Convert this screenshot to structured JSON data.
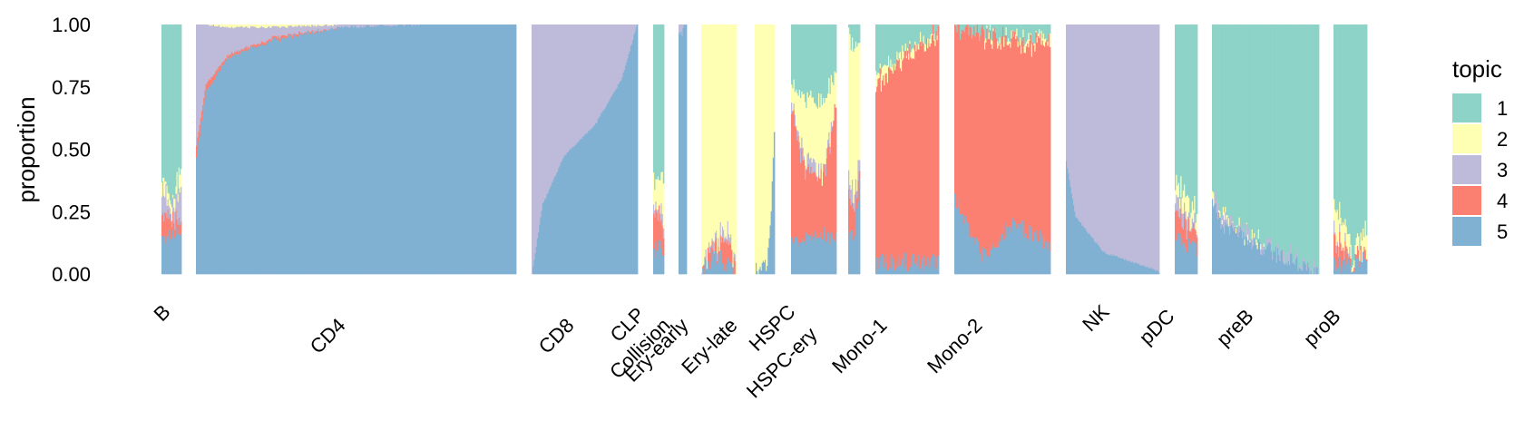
{
  "chart_data": {
    "type": "stacked-bar-structure-plot",
    "ylabel": "proportion",
    "ylim": [
      0,
      1
    ],
    "yticks": [
      "0.00",
      "0.25",
      "0.50",
      "0.75",
      "1.00"
    ],
    "legend_title": "topic",
    "legend_position": "right",
    "topics": [
      {
        "name": "1",
        "color": "#8DD3C7"
      },
      {
        "name": "2",
        "color": "#FFFFB3"
      },
      {
        "name": "3",
        "color": "#BEBADA"
      },
      {
        "name": "4",
        "color": "#FB8072"
      },
      {
        "name": "5",
        "color": "#80B1D3"
      }
    ],
    "groups": [
      {
        "name": "B",
        "n_cells": 20,
        "profiles": [
          [
            0.0,
            [
              0.6,
              0.05,
              0.1,
              0.1,
              0.15
            ]
          ],
          [
            0.5,
            [
              0.7,
              0.04,
              0.05,
              0.06,
              0.15
            ]
          ],
          [
            1.0,
            [
              0.58,
              0.08,
              0.12,
              0.04,
              0.18
            ]
          ]
        ]
      },
      {
        "name": "CD4",
        "n_cells": 300,
        "profiles": [
          [
            0.0,
            [
              0.0,
              0.0,
              0.48,
              0.05,
              0.47
            ]
          ],
          [
            0.03,
            [
              0.0,
              0.0,
              0.24,
              0.03,
              0.73
            ]
          ],
          [
            0.1,
            [
              0.0,
              0.01,
              0.11,
              0.01,
              0.87
            ]
          ],
          [
            0.25,
            [
              0.0,
              0.01,
              0.04,
              0.01,
              0.94
            ]
          ],
          [
            0.45,
            [
              0.0,
              0.0,
              0.01,
              0.0,
              0.99
            ]
          ],
          [
            0.7,
            [
              0.0,
              0.0,
              0.0,
              0.0,
              1.0
            ]
          ],
          [
            1.0,
            [
              0.0,
              0.0,
              0.0,
              0.0,
              1.0
            ]
          ]
        ]
      },
      {
        "name": "CD8",
        "n_cells": 100,
        "profiles": [
          [
            0.0,
            [
              0.0,
              0.0,
              1.0,
              0.0,
              0.0
            ]
          ],
          [
            0.1,
            [
              0.0,
              0.0,
              0.72,
              0.0,
              0.28
            ]
          ],
          [
            0.3,
            [
              0.0,
              0.0,
              0.53,
              0.0,
              0.47
            ]
          ],
          [
            0.6,
            [
              0.0,
              0.0,
              0.4,
              0.0,
              0.6
            ]
          ],
          [
            0.85,
            [
              0.0,
              0.0,
              0.22,
              0.0,
              0.78
            ]
          ],
          [
            1.0,
            [
              0.0,
              0.0,
              0.0,
              0.0,
              1.0
            ]
          ]
        ]
      },
      {
        "name": "CLP",
        "n_cells": 10,
        "profiles": [
          [
            0.0,
            [
              0.62,
              0.1,
              0.03,
              0.15,
              0.1
            ]
          ],
          [
            1.0,
            [
              0.6,
              0.17,
              0.03,
              0.1,
              0.1
            ]
          ]
        ]
      },
      {
        "name": "Collision",
        "n_cells": 8,
        "profiles": [
          [
            0.0,
            [
              0.0,
              0.0,
              0.05,
              0.0,
              0.95
            ]
          ],
          [
            1.0,
            [
              0.0,
              0.0,
              0.0,
              0.0,
              1.0
            ]
          ]
        ]
      },
      {
        "name": "Ery-early",
        "n_cells": 34,
        "profiles": [
          [
            0.0,
            [
              0.0,
              0.97,
              0.0,
              0.01,
              0.02
            ]
          ],
          [
            0.5,
            [
              0.0,
              0.85,
              0.02,
              0.05,
              0.08
            ]
          ],
          [
            0.75,
            [
              0.0,
              0.82,
              0.05,
              0.1,
              0.03
            ]
          ],
          [
            1.0,
            [
              0.0,
              0.98,
              0.0,
              0.01,
              0.01
            ]
          ]
        ]
      },
      {
        "name": "Ery-late",
        "n_cells": 20,
        "profiles": [
          [
            0.0,
            [
              0.0,
              0.99,
              0.0,
              0.0,
              0.01
            ]
          ],
          [
            0.6,
            [
              0.0,
              0.95,
              0.0,
              0.0,
              0.05
            ]
          ],
          [
            0.8,
            [
              0.0,
              0.82,
              0.0,
              0.0,
              0.18
            ]
          ],
          [
            1.0,
            [
              0.0,
              0.43,
              0.0,
              0.0,
              0.57
            ]
          ]
        ]
      },
      {
        "name": "HSPC",
        "n_cells": 40,
        "profiles": [
          [
            0.0,
            [
              0.25,
              0.05,
              0.02,
              0.55,
              0.13
            ]
          ],
          [
            0.3,
            [
              0.3,
              0.25,
              0.03,
              0.27,
              0.15
            ]
          ],
          [
            0.7,
            [
              0.32,
              0.28,
              0.02,
              0.23,
              0.15
            ]
          ],
          [
            1.0,
            [
              0.2,
              0.12,
              0.0,
              0.53,
              0.15
            ]
          ]
        ]
      },
      {
        "name": "HSPC-ery",
        "n_cells": 10,
        "profiles": [
          [
            0.0,
            [
              0.05,
              0.55,
              0.1,
              0.15,
              0.15
            ]
          ],
          [
            0.5,
            [
              0.1,
              0.6,
              0.05,
              0.1,
              0.15
            ]
          ],
          [
            1.0,
            [
              0.05,
              0.5,
              0.05,
              0.05,
              0.35
            ]
          ]
        ]
      },
      {
        "name": "Mono-1",
        "n_cells": 60,
        "profiles": [
          [
            0.0,
            [
              0.2,
              0.05,
              0.0,
              0.7,
              0.05
            ]
          ],
          [
            0.5,
            [
              0.1,
              0.02,
              0.0,
              0.83,
              0.05
            ]
          ],
          [
            1.0,
            [
              0.02,
              0.0,
              0.0,
              0.93,
              0.05
            ]
          ]
        ]
      },
      {
        "name": "Mono-2",
        "n_cells": 90,
        "profiles": [
          [
            0.0,
            [
              0.02,
              0.0,
              0.0,
              0.68,
              0.3
            ]
          ],
          [
            0.3,
            [
              0.03,
              0.0,
              0.0,
              0.9,
              0.07
            ]
          ],
          [
            0.6,
            [
              0.05,
              0.02,
              0.0,
              0.73,
              0.2
            ]
          ],
          [
            1.0,
            [
              0.05,
              0.02,
              0.0,
              0.8,
              0.13
            ]
          ]
        ]
      },
      {
        "name": "NK",
        "n_cells": 90,
        "profiles": [
          [
            0.0,
            [
              0.0,
              0.0,
              0.55,
              0.0,
              0.45
            ]
          ],
          [
            0.1,
            [
              0.0,
              0.0,
              0.77,
              0.0,
              0.23
            ]
          ],
          [
            0.4,
            [
              0.0,
              0.0,
              0.91,
              0.0,
              0.09
            ]
          ],
          [
            1.0,
            [
              0.0,
              0.0,
              0.99,
              0.0,
              0.01
            ]
          ]
        ]
      },
      {
        "name": "pDC",
        "n_cells": 20,
        "profiles": [
          [
            0.0,
            [
              0.62,
              0.08,
              0.05,
              0.1,
              0.15
            ]
          ],
          [
            1.0,
            [
              0.75,
              0.05,
              0.03,
              0.07,
              0.1
            ]
          ]
        ]
      },
      {
        "name": "preB",
        "n_cells": 100,
        "profiles": [
          [
            0.0,
            [
              0.65,
              0.02,
              0.03,
              0.0,
              0.3
            ]
          ],
          [
            0.1,
            [
              0.78,
              0.01,
              0.02,
              0.0,
              0.19
            ]
          ],
          [
            0.5,
            [
              0.88,
              0.0,
              0.02,
              0.0,
              0.1
            ]
          ],
          [
            1.0,
            [
              0.99,
              0.0,
              0.0,
              0.0,
              0.01
            ]
          ]
        ]
      },
      {
        "name": "proB",
        "n_cells": 30,
        "profiles": [
          [
            0.0,
            [
              0.7,
              0.1,
              0.05,
              0.1,
              0.05
            ]
          ],
          [
            0.5,
            [
              0.9,
              0.05,
              0.0,
              0.02,
              0.03
            ]
          ],
          [
            1.0,
            [
              0.8,
              0.08,
              0.0,
              0.04,
              0.08
            ]
          ]
        ]
      }
    ]
  }
}
